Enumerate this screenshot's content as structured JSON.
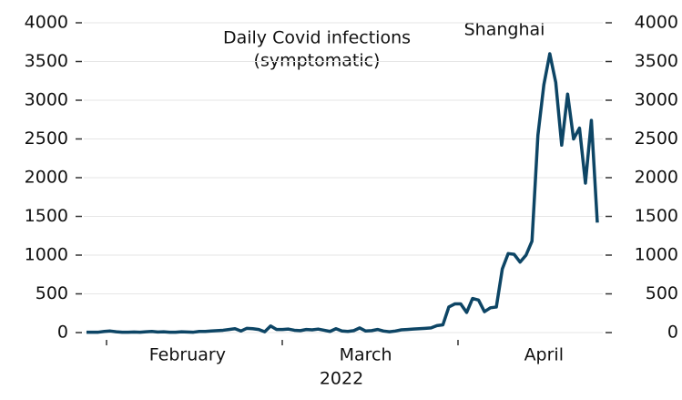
{
  "chart_data": {
    "type": "line",
    "title": "Daily Covid infections",
    "subtitle": "(symptomatic)",
    "x_label": "2022",
    "categories": [
      null,
      null,
      null,
      null,
      null,
      null,
      null,
      null,
      null,
      null,
      null,
      null,
      null,
      null,
      null,
      null,
      null,
      "February",
      null,
      null,
      null,
      null,
      null,
      null,
      null,
      null,
      null,
      null,
      null,
      null,
      null,
      null,
      null,
      null,
      null,
      null,
      null,
      null,
      null,
      null,
      null,
      null,
      null,
      null,
      null,
      null,
      null,
      "March",
      null,
      null,
      null,
      null,
      null,
      null,
      null,
      null,
      null,
      null,
      null,
      null,
      null,
      null,
      null,
      null,
      null,
      null,
      null,
      null,
      null,
      null,
      null,
      null,
      null,
      null,
      null,
      null,
      null,
      "April",
      null,
      null,
      null,
      null,
      null,
      null,
      null,
      null,
      null
    ],
    "series": [
      {
        "name": "Shanghai",
        "color": "#0d4565",
        "values": [
          5,
          5,
          5,
          15,
          20,
          10,
          5,
          5,
          8,
          5,
          10,
          15,
          8,
          10,
          5,
          5,
          10,
          8,
          5,
          15,
          15,
          20,
          25,
          30,
          40,
          50,
          20,
          55,
          50,
          40,
          10,
          85,
          40,
          40,
          45,
          30,
          25,
          40,
          35,
          45,
          30,
          15,
          50,
          20,
          15,
          25,
          60,
          20,
          25,
          40,
          20,
          10,
          20,
          35,
          40,
          45,
          50,
          55,
          60,
          90,
          100,
          330,
          370,
          370,
          260,
          440,
          420,
          270,
          320,
          330,
          820,
          1020,
          1010,
          910,
          1000,
          1180,
          2550,
          3200,
          3600,
          3230,
          2420,
          3080,
          2500,
          2640,
          1930,
          2740,
          1420
        ]
      }
    ],
    "ylim": [
      0,
      4000
    ],
    "yticks": [
      0,
      500,
      1000,
      1500,
      2000,
      2500,
      3000,
      3500,
      4000
    ],
    "y2lim": [
      0,
      4000
    ],
    "y2ticks": [
      0,
      500,
      1000,
      1500,
      2000,
      2500,
      3000,
      3500,
      4000
    ],
    "grid": true
  }
}
